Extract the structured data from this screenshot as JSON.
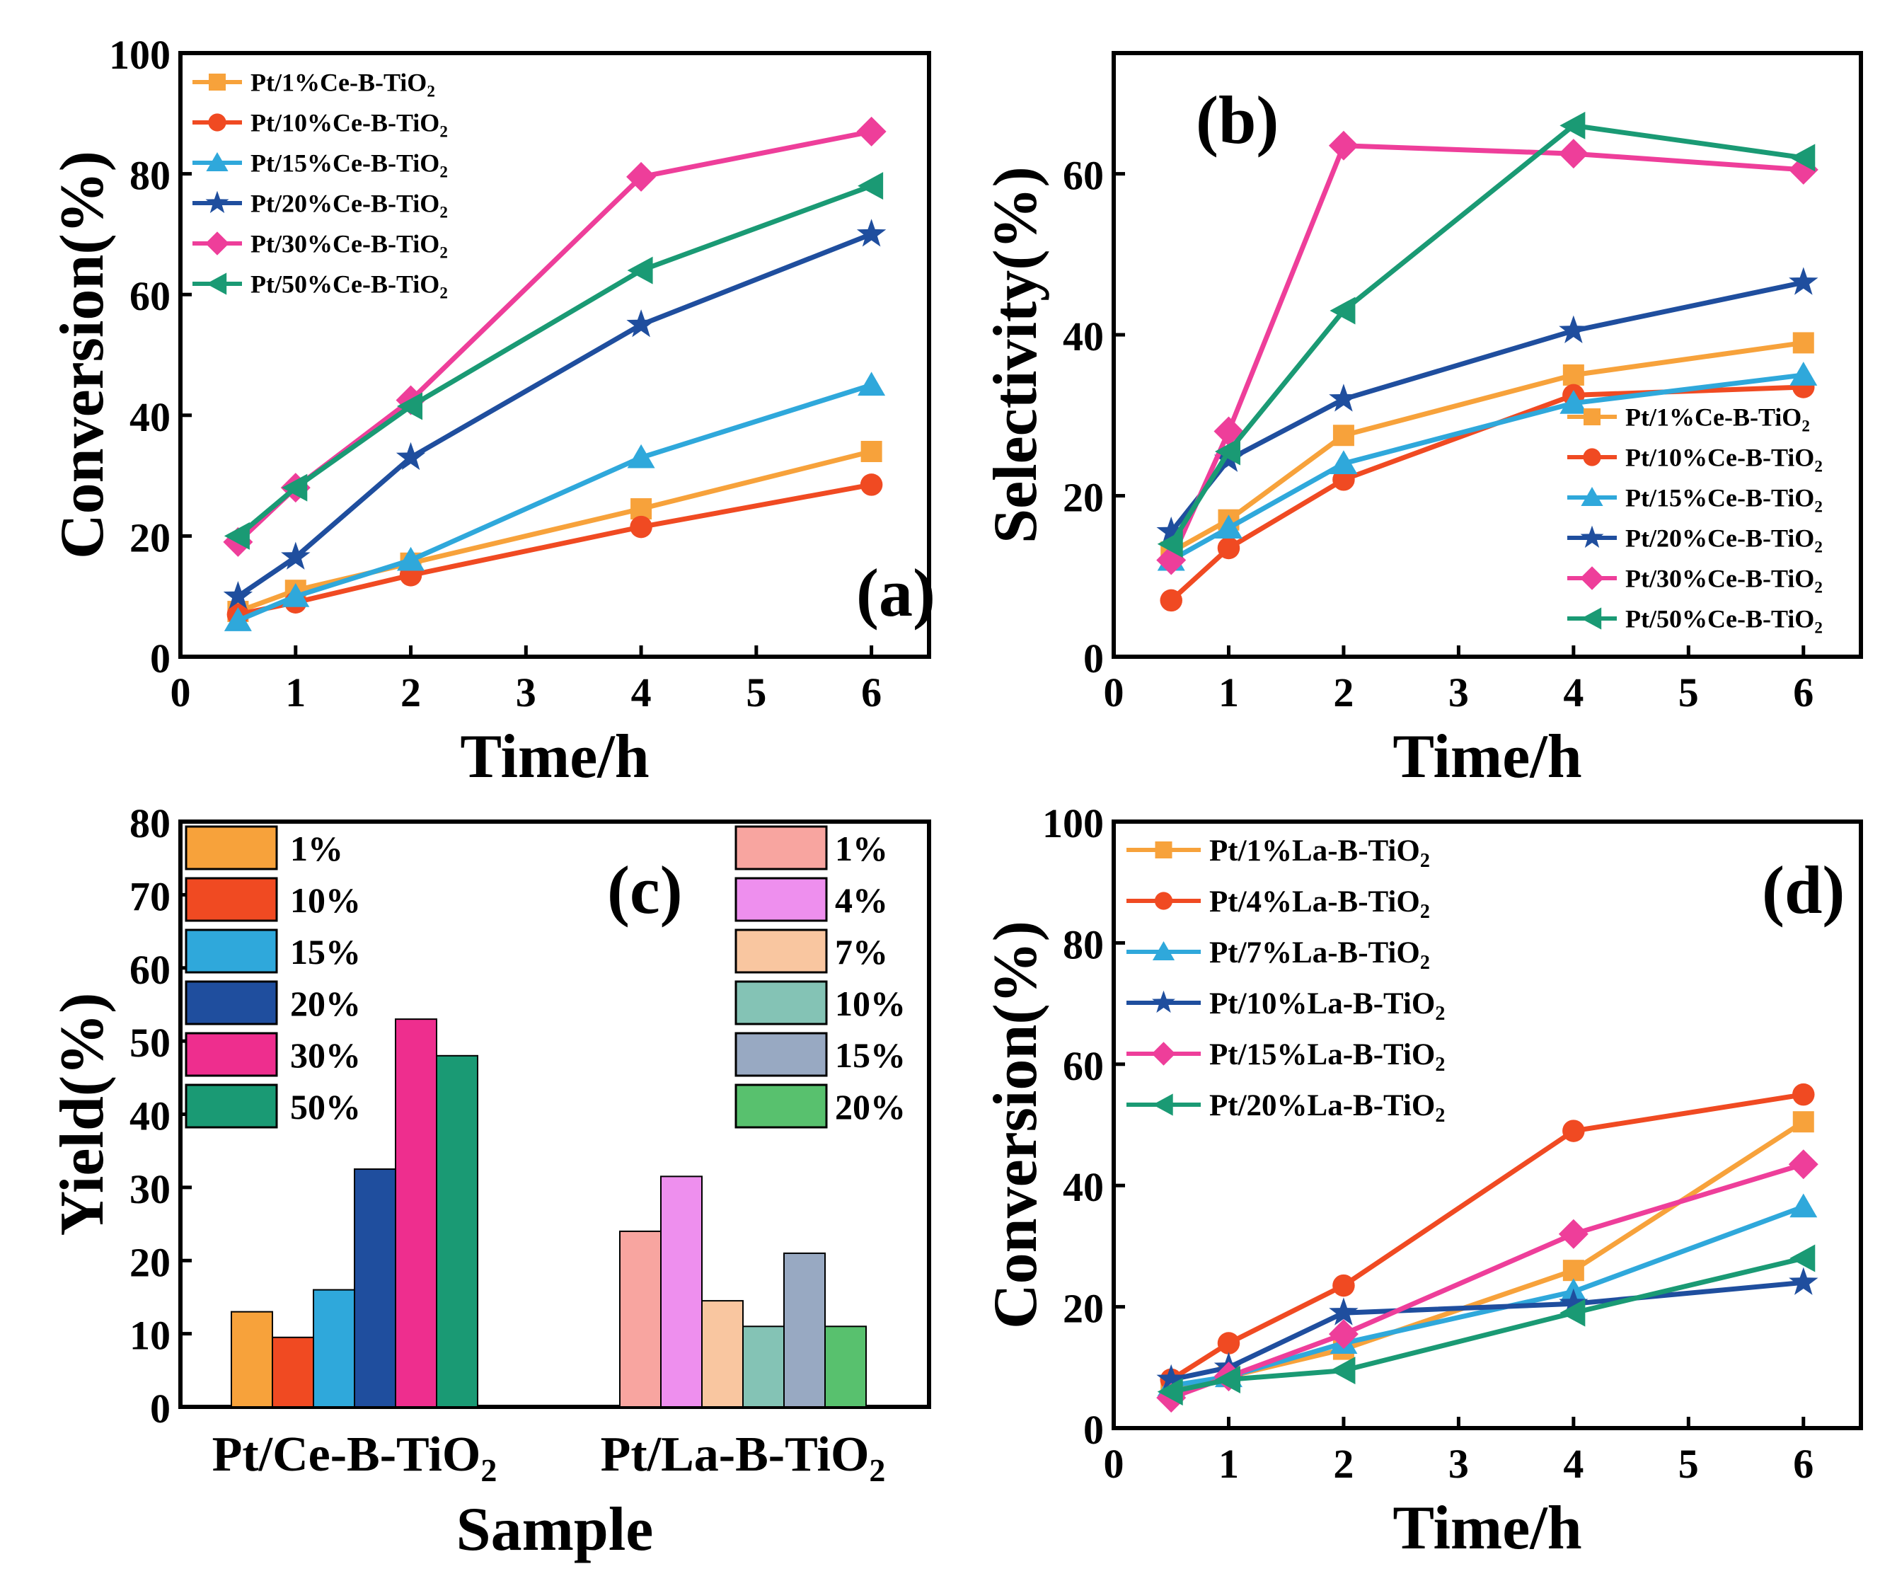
{
  "chart_data": [
    {
      "id": "a",
      "type": "line",
      "panel_label": "(a)",
      "xlabel": "Time/h",
      "ylabel": "Conversion(%)",
      "xlim": [
        0,
        6.5
      ],
      "ylim": [
        0,
        100
      ],
      "xticks": [
        "0",
        "1",
        "2",
        "3",
        "4",
        "5",
        "6"
      ],
      "yticks": [
        "0",
        "20",
        "40",
        "60",
        "80",
        "100"
      ],
      "legend_position": "top-left",
      "x": [
        0.5,
        1,
        2,
        4,
        6
      ],
      "series": [
        {
          "name": "Pt/1%Ce-B-TiO",
          "sub": "2",
          "color": "#F7A23B",
          "marker": "square",
          "values": [
            7.5,
            11,
            15.5,
            24.5,
            34
          ]
        },
        {
          "name": "Pt/10%Ce-B-TiO",
          "sub": "2",
          "color": "#F04A22",
          "marker": "circle",
          "values": [
            7,
            9,
            13.5,
            21.5,
            28.5
          ]
        },
        {
          "name": "Pt/15%Ce-B-TiO",
          "sub": "2",
          "color": "#2FA8DB",
          "marker": "triangle",
          "values": [
            6,
            10,
            16,
            33,
            45
          ]
        },
        {
          "name": "Pt/20%Ce-B-TiO",
          "sub": "2",
          "color": "#1F4E9E",
          "marker": "star",
          "values": [
            10,
            16.5,
            33,
            55,
            70
          ]
        },
        {
          "name": "Pt/30%Ce-B-TiO",
          "sub": "2",
          "color": "#EE3E9A",
          "marker": "diamond",
          "values": [
            19,
            28,
            42.5,
            79.5,
            87
          ]
        },
        {
          "name": "Pt/50%Ce-B-TiO",
          "sub": "2",
          "color": "#1A9A74",
          "marker": "tri-left",
          "values": [
            20,
            28,
            41.5,
            64,
            78
          ]
        }
      ]
    },
    {
      "id": "b",
      "type": "line",
      "panel_label": "(b)",
      "xlabel": "Time/h",
      "ylabel": "Selectivity(%)",
      "xlim": [
        0,
        6.5
      ],
      "ylim": [
        0,
        75
      ],
      "xticks": [
        "0",
        "1",
        "2",
        "3",
        "4",
        "5",
        "6"
      ],
      "yticks": [
        "0",
        "20",
        "40",
        "60"
      ],
      "legend_position": "bottom-right",
      "x": [
        0.5,
        1,
        2,
        4,
        6
      ],
      "series": [
        {
          "name": "Pt/1%Ce-B-TiO",
          "sub": "2",
          "color": "#F7A23B",
          "marker": "square",
          "values": [
            13,
            17,
            27.5,
            35,
            39
          ]
        },
        {
          "name": "Pt/10%Ce-B-TiO",
          "sub": "2",
          "color": "#F04A22",
          "marker": "circle",
          "values": [
            7,
            13.5,
            22,
            32.5,
            33.5
          ]
        },
        {
          "name": "Pt/15%Ce-B-TiO",
          "sub": "2",
          "color": "#2FA8DB",
          "marker": "triangle",
          "values": [
            12,
            16,
            24,
            31.5,
            35
          ]
        },
        {
          "name": "Pt/20%Ce-B-TiO",
          "sub": "2",
          "color": "#1F4E9E",
          "marker": "star",
          "values": [
            15.5,
            24.5,
            32,
            40.5,
            46.5
          ]
        },
        {
          "name": "Pt/30%Ce-B-TiO",
          "sub": "2",
          "color": "#EE3E9A",
          "marker": "diamond",
          "values": [
            12,
            28,
            63.5,
            62.5,
            60.5
          ]
        },
        {
          "name": "Pt/50%Ce-B-TiO",
          "sub": "2",
          "color": "#1A9A74",
          "marker": "tri-left",
          "values": [
            14,
            25.5,
            43,
            66,
            62
          ]
        }
      ]
    },
    {
      "id": "c",
      "type": "bar",
      "panel_label": "(c)",
      "xlabel": "Sample",
      "ylabel": "Yield(%)",
      "ylim": [
        0,
        80
      ],
      "yticks": [
        "0",
        "10",
        "20",
        "30",
        "40",
        "50",
        "60",
        "70",
        "80"
      ],
      "groups": [
        {
          "name": "Pt/Ce-B-TiO",
          "sub": "2",
          "bars": [
            {
              "label": "1%",
              "value": 13,
              "color": "#F7A23B"
            },
            {
              "label": "10%",
              "value": 9.5,
              "color": "#F04A22"
            },
            {
              "label": "15%",
              "value": 16,
              "color": "#2FA8DB"
            },
            {
              "label": "20%",
              "value": 32.5,
              "color": "#1F4E9E"
            },
            {
              "label": "30%",
              "value": 53,
              "color": "#EE2E8E"
            },
            {
              "label": "50%",
              "value": 48,
              "color": "#1A9A74"
            }
          ]
        },
        {
          "name": "Pt/La-B-TiO",
          "sub": "2",
          "bars": [
            {
              "label": "1%",
              "value": 24,
              "color": "#F8A5A0"
            },
            {
              "label": "4%",
              "value": 31.5,
              "color": "#EE8FEE"
            },
            {
              "label": "7%",
              "value": 14.5,
              "color": "#F9C6A0"
            },
            {
              "label": "10%",
              "value": 11,
              "color": "#84C3B5"
            },
            {
              "label": "15%",
              "value": 21,
              "color": "#98A9C2"
            },
            {
              "label": "20%",
              "value": 11,
              "color": "#58C16E"
            }
          ]
        }
      ]
    },
    {
      "id": "d",
      "type": "line",
      "panel_label": "(d)",
      "xlabel": "Time/h",
      "ylabel": "Conversion(%)",
      "xlim": [
        0,
        6.5
      ],
      "ylim": [
        0,
        100
      ],
      "xticks": [
        "0",
        "1",
        "2",
        "3",
        "4",
        "5",
        "6"
      ],
      "yticks": [
        "0",
        "20",
        "40",
        "60",
        "80",
        "100"
      ],
      "legend_position": "top-left",
      "x": [
        0.5,
        1,
        2,
        4,
        6
      ],
      "series": [
        {
          "name": "Pt/1%La-B-TiO",
          "sub": "2",
          "color": "#F7A23B",
          "marker": "square",
          "values": [
            6,
            8.5,
            13,
            26,
            50.5
          ]
        },
        {
          "name": "Pt/4%La-B-TiO",
          "sub": "2",
          "color": "#F04A22",
          "marker": "circle",
          "values": [
            8,
            14,
            23.5,
            49,
            55
          ]
        },
        {
          "name": "Pt/7%La-B-TiO",
          "sub": "2",
          "color": "#2FA8DB",
          "marker": "triangle",
          "values": [
            7,
            8.5,
            14,
            22.5,
            36.5
          ]
        },
        {
          "name": "Pt/10%La-B-TiO",
          "sub": "2",
          "color": "#1F4E9E",
          "marker": "star",
          "values": [
            8,
            10,
            19,
            20.5,
            24
          ]
        },
        {
          "name": "Pt/15%La-B-TiO",
          "sub": "2",
          "color": "#EE3E9A",
          "marker": "diamond",
          "values": [
            5,
            8.5,
            15.5,
            32,
            43.5
          ]
        },
        {
          "name": "Pt/20%La-B-TiO",
          "sub": "2",
          "color": "#1A9A74",
          "marker": "tri-left",
          "values": [
            6,
            8,
            9.5,
            19,
            28
          ]
        }
      ]
    }
  ]
}
